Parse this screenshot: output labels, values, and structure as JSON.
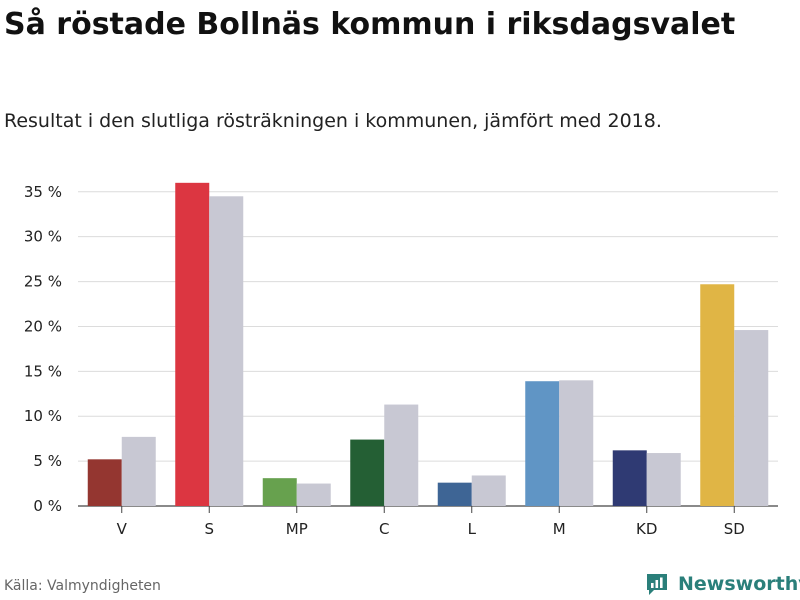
{
  "title": "Så röstade Bollnäs kommun i riksdagsvalet",
  "subtitle": "Resultat i den slutliga rösträkningen i kommunen, jämfört med 2018.",
  "source": "Källa: Valmyndigheten",
  "brand": {
    "name": "Newsworthy",
    "icon": "newsworthy-logo-icon",
    "color": "#2a7f7a"
  },
  "chart_data": {
    "type": "bar",
    "categories": [
      "V",
      "S",
      "MP",
      "C",
      "L",
      "M",
      "KD",
      "SD"
    ],
    "series": [
      {
        "values": [
          5.2,
          36.0,
          3.1,
          7.4,
          2.6,
          13.9,
          6.2,
          24.7
        ],
        "colors": [
          "#943630",
          "#dc3641",
          "#67a14e",
          "#245f34",
          "#3e6595",
          "#6095c5",
          "#2f3a73",
          "#e0b545"
        ]
      },
      {
        "values": [
          7.7,
          34.5,
          2.5,
          11.3,
          3.4,
          14.0,
          5.9,
          19.6
        ],
        "color": "#c8c8d3"
      }
    ],
    "yticks": [
      "0 %",
      "5 %",
      "10 %",
      "15 %",
      "20 %",
      "25 %",
      "30 %",
      "35 %"
    ],
    "ylim": [
      0,
      37
    ],
    "grid": true,
    "legend": "none"
  }
}
